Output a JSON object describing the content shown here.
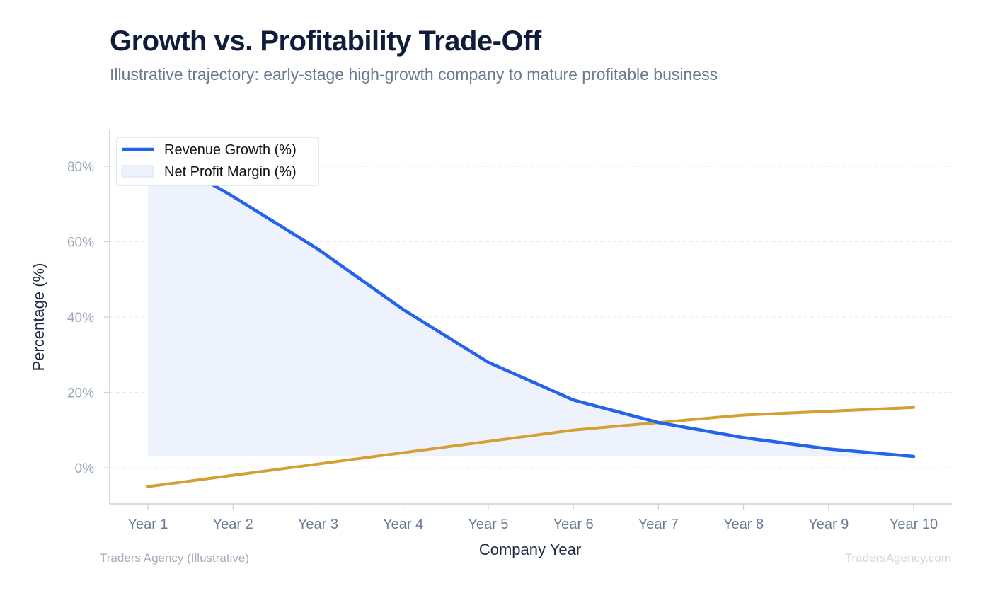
{
  "header": {
    "title": "Growth vs. Profitability Trade-Off",
    "subtitle": "Illustrative trajectory: early-stage high-growth company to mature profitable business"
  },
  "footer": {
    "source": "Traders Agency (Illustrative)",
    "watermark": "TradersAgency.com"
  },
  "chart_data": {
    "type": "line",
    "categories": [
      "Year 1",
      "Year 2",
      "Year 3",
      "Year 4",
      "Year 5",
      "Year 6",
      "Year 7",
      "Year 8",
      "Year 9",
      "Year 10"
    ],
    "xlabel": "Company Year",
    "ylabel": "Percentage (%)",
    "ylim": [
      -10,
      90
    ],
    "yticks": [
      0,
      20,
      40,
      60,
      80
    ],
    "ytick_labels": [
      "0%",
      "20%",
      "40%",
      "60%",
      "80%"
    ],
    "grid": "horizontal dashed",
    "legend_position": "top-left",
    "legend": [
      "Revenue Growth (%)",
      "Net Profit Margin (%)"
    ],
    "series": [
      {
        "name": "Revenue Growth (%)",
        "values": [
          85,
          72,
          58,
          42,
          28,
          18,
          12,
          8,
          5,
          3
        ],
        "color": "#2563eb",
        "fill_color": "#edf2fc"
      },
      {
        "name": "",
        "values": [
          -5,
          -2,
          1,
          4,
          7,
          10,
          12,
          14,
          15,
          16
        ],
        "color": "#d4a033"
      }
    ]
  }
}
